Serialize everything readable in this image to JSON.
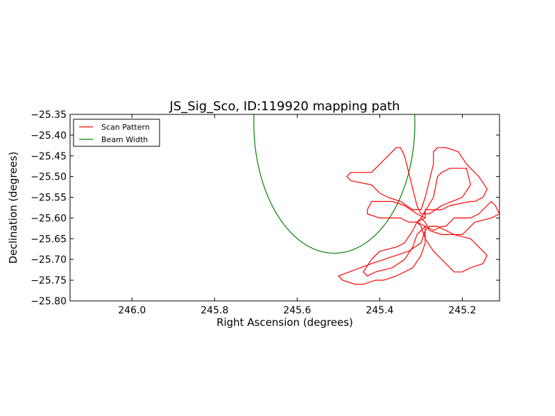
{
  "chart_data": {
    "type": "line",
    "title": "JS_Sig_Sco, ID:119920 mapping path",
    "xlabel": "Right Ascension (degrees)",
    "ylabel": "Declination (degrees)",
    "xlim": [
      246.15,
      245.11
    ],
    "ylim": [
      -25.8,
      -25.35
    ],
    "x_ticks": [
      246.0,
      245.8,
      245.6,
      245.4,
      245.2
    ],
    "x_tick_labels": [
      "246.0",
      "245.8",
      "245.6",
      "245.4",
      "245.2"
    ],
    "y_ticks": [
      -25.35,
      -25.4,
      -25.45,
      -25.5,
      -25.55,
      -25.6,
      -25.65,
      -25.7,
      -25.75,
      -25.8
    ],
    "y_tick_labels": [
      "−25.35",
      "−25.40",
      "−25.45",
      "−25.50",
      "−25.55",
      "−25.60",
      "−25.65",
      "−25.70",
      "−25.75",
      "−25.80"
    ],
    "grid": false,
    "legend_position": "top-left",
    "series": [
      {
        "name": "Scan Pattern",
        "color": "#ff0000",
        "x": [
          245.3,
          245.27,
          245.26,
          245.25,
          245.23,
          245.19,
          245.18,
          245.2,
          245.25,
          245.28,
          245.3,
          245.31,
          245.32,
          245.33,
          245.34,
          245.35,
          245.36,
          245.42,
          245.47,
          245.48,
          245.47,
          245.42,
          245.4,
          245.38,
          245.35,
          245.32,
          245.3,
          245.29,
          245.28,
          245.27,
          245.27,
          245.26,
          245.24,
          245.21,
          245.19,
          245.16,
          245.14,
          245.15,
          245.17,
          245.18,
          245.23,
          245.25,
          245.27,
          245.29,
          245.29,
          245.31,
          245.32,
          245.34,
          245.36,
          245.4,
          245.42,
          245.44,
          245.43,
          245.41,
          245.37,
          245.34,
          245.32,
          245.31,
          245.29,
          245.27,
          245.25,
          245.24,
          245.22,
          245.18,
          245.16,
          245.14,
          245.13,
          245.12,
          245.11,
          245.13,
          245.17,
          245.2,
          245.25,
          245.28,
          245.29,
          245.3,
          245.31,
          245.3,
          245.29,
          245.27,
          245.24,
          245.22,
          245.2,
          245.18,
          245.15,
          245.14,
          245.16,
          245.18,
          245.22,
          245.24,
          245.26,
          245.28,
          245.29,
          245.29,
          245.3,
          245.32,
          245.36,
          245.39,
          245.41,
          245.44,
          245.46,
          245.49,
          245.5,
          245.42,
          245.33,
          245.3,
          245.29,
          245.29,
          245.31,
          245.33,
          245.35,
          245.4,
          245.43,
          245.43,
          245.42,
          245.37,
          245.34,
          245.31,
          245.29
        ],
        "y": [
          -25.6,
          -25.55,
          -25.5,
          -25.49,
          -25.48,
          -25.48,
          -25.52,
          -25.55,
          -25.57,
          -25.59,
          -25.59,
          -25.57,
          -25.53,
          -25.49,
          -25.45,
          -25.43,
          -25.43,
          -25.49,
          -25.49,
          -25.5,
          -25.51,
          -25.52,
          -25.54,
          -25.55,
          -25.56,
          -25.58,
          -25.58,
          -25.55,
          -25.51,
          -25.47,
          -25.44,
          -25.43,
          -25.43,
          -25.44,
          -25.47,
          -25.5,
          -25.53,
          -25.55,
          -25.56,
          -25.56,
          -25.57,
          -25.58,
          -25.58,
          -25.58,
          -25.6,
          -25.61,
          -25.63,
          -25.66,
          -25.67,
          -25.68,
          -25.7,
          -25.73,
          -25.74,
          -25.73,
          -25.72,
          -25.7,
          -25.67,
          -25.64,
          -25.62,
          -25.63,
          -25.62,
          -25.62,
          -25.6,
          -25.6,
          -25.59,
          -25.57,
          -25.56,
          -25.57,
          -25.59,
          -25.6,
          -25.61,
          -25.64,
          -25.64,
          -25.63,
          -25.61,
          -25.6,
          -25.61,
          -25.62,
          -25.65,
          -25.68,
          -25.71,
          -25.73,
          -25.73,
          -25.72,
          -25.71,
          -25.69,
          -25.67,
          -25.65,
          -25.64,
          -25.63,
          -25.62,
          -25.62,
          -25.63,
          -25.66,
          -25.69,
          -25.72,
          -25.74,
          -25.75,
          -25.75,
          -25.76,
          -25.76,
          -25.75,
          -25.74,
          -25.71,
          -25.68,
          -25.66,
          -25.63,
          -25.62,
          -25.61,
          -25.61,
          -25.6,
          -25.6,
          -25.59,
          -25.58,
          -25.56,
          -25.56,
          -25.57,
          -25.59,
          -25.6
        ]
      },
      {
        "name": "Beam Width",
        "color": "#008000",
        "center": [
          245.51,
          -25.37
        ],
        "radius_ra": 0.195,
        "radius_dec": 0.315
      }
    ]
  }
}
